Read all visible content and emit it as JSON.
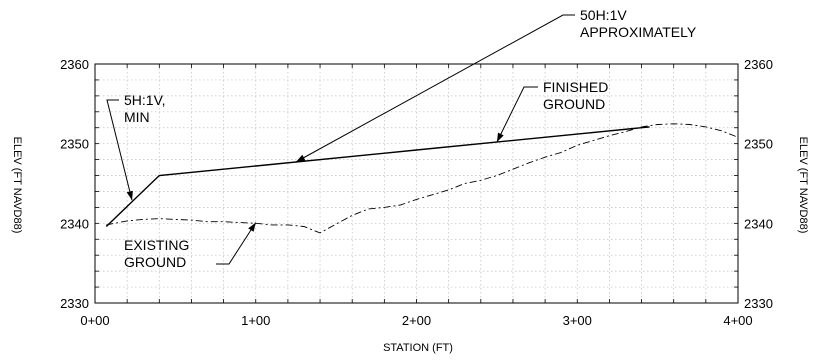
{
  "chart_data": {
    "type": "line",
    "title": "",
    "xlabel": "STATION (FT)",
    "ylabel_left": "ELEV (FT NAVD88)",
    "ylabel_right": "ELEV (FT NAVD88)",
    "xlim": [
      0,
      400
    ],
    "ylim": [
      2330,
      2360
    ],
    "grid": true,
    "x_tick_labels": [
      {
        "x": 0,
        "label": "0+00"
      },
      {
        "x": 100,
        "label": "1+00"
      },
      {
        "x": 200,
        "label": "2+00"
      },
      {
        "x": 300,
        "label": "3+00"
      },
      {
        "x": 400,
        "label": "4+00"
      }
    ],
    "y_tick_labels": [
      {
        "y": 2330,
        "label": "2330"
      },
      {
        "y": 2340,
        "label": "2340"
      },
      {
        "y": 2350,
        "label": "2350"
      },
      {
        "y": 2360,
        "label": "2360"
      }
    ],
    "series": [
      {
        "name": "FINISHED GROUND",
        "style": "solid",
        "x": [
          7,
          40,
          100,
          200,
          300,
          345
        ],
        "y": [
          2339.6,
          2346.0,
          2347.2,
          2349.2,
          2351.2,
          2352.1
        ]
      },
      {
        "name": "EXISTING GROUND",
        "style": "dashed",
        "x": [
          7,
          20,
          30,
          40,
          50,
          60,
          70,
          80,
          90,
          100,
          110,
          120,
          130,
          140,
          150,
          160,
          170,
          180,
          190,
          200,
          210,
          220,
          230,
          240,
          250,
          260,
          270,
          280,
          290,
          300,
          310,
          320,
          330,
          340,
          350,
          360,
          370,
          380,
          390,
          400
        ],
        "y": [
          2339.8,
          2340.3,
          2340.5,
          2340.6,
          2340.5,
          2340.4,
          2340.2,
          2340.2,
          2340.1,
          2340.0,
          2339.8,
          2339.8,
          2339.6,
          2338.8,
          2339.9,
          2341.0,
          2341.8,
          2342.0,
          2342.3,
          2343.0,
          2343.6,
          2344.2,
          2345.0,
          2345.4,
          2346.0,
          2346.8,
          2347.6,
          2348.3,
          2348.9,
          2349.8,
          2350.4,
          2351.0,
          2351.5,
          2352.1,
          2352.4,
          2352.5,
          2352.4,
          2352.1,
          2351.6,
          2350.8
        ]
      }
    ],
    "annotations": [
      {
        "lines": [
          "50H:1V",
          "APPROXIMATELY"
        ],
        "target": {
          "x": 125,
          "y": 2347.7
        }
      },
      {
        "lines": [
          "5H:1V,",
          "MIN"
        ],
        "target": {
          "x": 23,
          "y": 2342.9
        }
      },
      {
        "lines": [
          "FINISHED",
          "GROUND"
        ],
        "target": {
          "x": 250,
          "y": 2350.2
        }
      },
      {
        "lines": [
          "EXISTING",
          "GROUND"
        ],
        "target": {
          "x": 100,
          "y": 2340.1
        }
      }
    ]
  }
}
